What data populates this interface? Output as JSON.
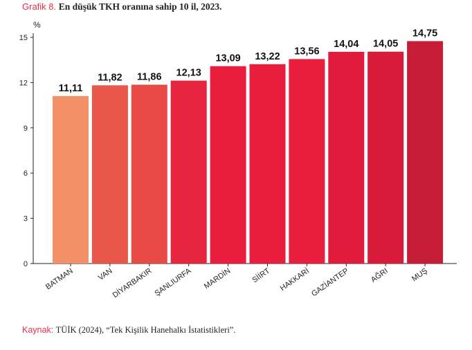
{
  "header": {
    "label": "Grafik 8.",
    "title": "En düşük TKH oranına sahip 10 il, 2023."
  },
  "footer": {
    "label": "Kaynak:",
    "text": "TÜİK (2024), “Tek Kişilik Hanehalkı İstatistikleri”."
  },
  "chart_data": {
    "type": "bar",
    "unit": "%",
    "categories": [
      "BATMAN",
      "VAN",
      "DİYARBAKIR",
      "ŞANLIURFA",
      "MARDİN",
      "SİİRT",
      "HAKKARİ",
      "GAZİANTEP",
      "AĞRI",
      "MUŞ"
    ],
    "values": [
      11.11,
      11.82,
      11.86,
      12.13,
      13.09,
      13.22,
      13.56,
      14.04,
      14.05,
      14.75
    ],
    "value_labels": [
      "11,11",
      "11,82",
      "11,86",
      "12,13",
      "13,09",
      "13,22",
      "13,56",
      "14,04",
      "14,05",
      "14,75"
    ],
    "colors": [
      "#f39068",
      "#e8574a",
      "#e84b45",
      "#e8253f",
      "#e81e3c",
      "#e81e3c",
      "#e81e3c",
      "#e01b3b",
      "#d81b3a",
      "#c51d38"
    ],
    "yticks": [
      0,
      3,
      6,
      9,
      12,
      15
    ],
    "ylim": [
      0,
      15
    ],
    "xlabel": "",
    "ylabel": "",
    "grid": false,
    "legend": "none"
  }
}
